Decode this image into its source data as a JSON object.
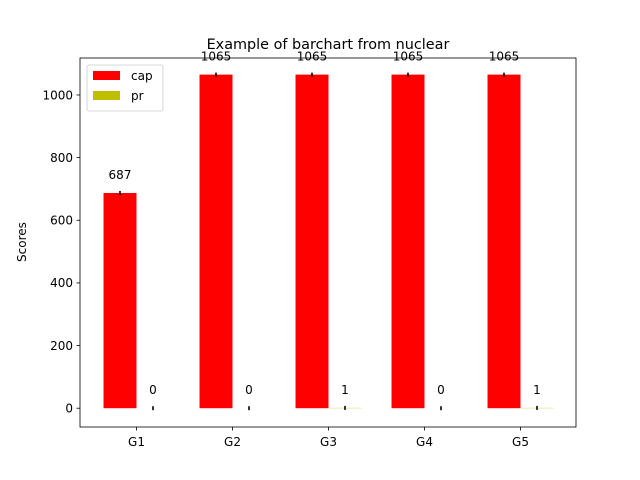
{
  "chart_data": {
    "type": "bar",
    "title": "Example of barchart from nuclear",
    "xlabel": "",
    "ylabel": "Scores",
    "categories": [
      "G1",
      "G2",
      "G3",
      "G4",
      "G5"
    ],
    "series": [
      {
        "name": "cap",
        "color": "#ff0000",
        "values": [
          687,
          1065,
          1065,
          1065,
          1065
        ],
        "labels": [
          "687",
          "1065",
          "1065",
          "1065",
          "1065"
        ]
      },
      {
        "name": "pr",
        "color": "#bfbf00",
        "values": [
          0,
          0,
          1,
          0,
          1
        ],
        "labels": [
          "0",
          "0",
          "1",
          "0",
          "1"
        ]
      }
    ],
    "ylim": [
      -60,
      1118
    ],
    "yticks": [
      0,
      200,
      400,
      600,
      800,
      1000
    ],
    "ytick_labels": [
      "0",
      "200",
      "400",
      "600",
      "800",
      "1000"
    ],
    "legend_position": "top-left",
    "grid": false,
    "error_bars": true
  }
}
